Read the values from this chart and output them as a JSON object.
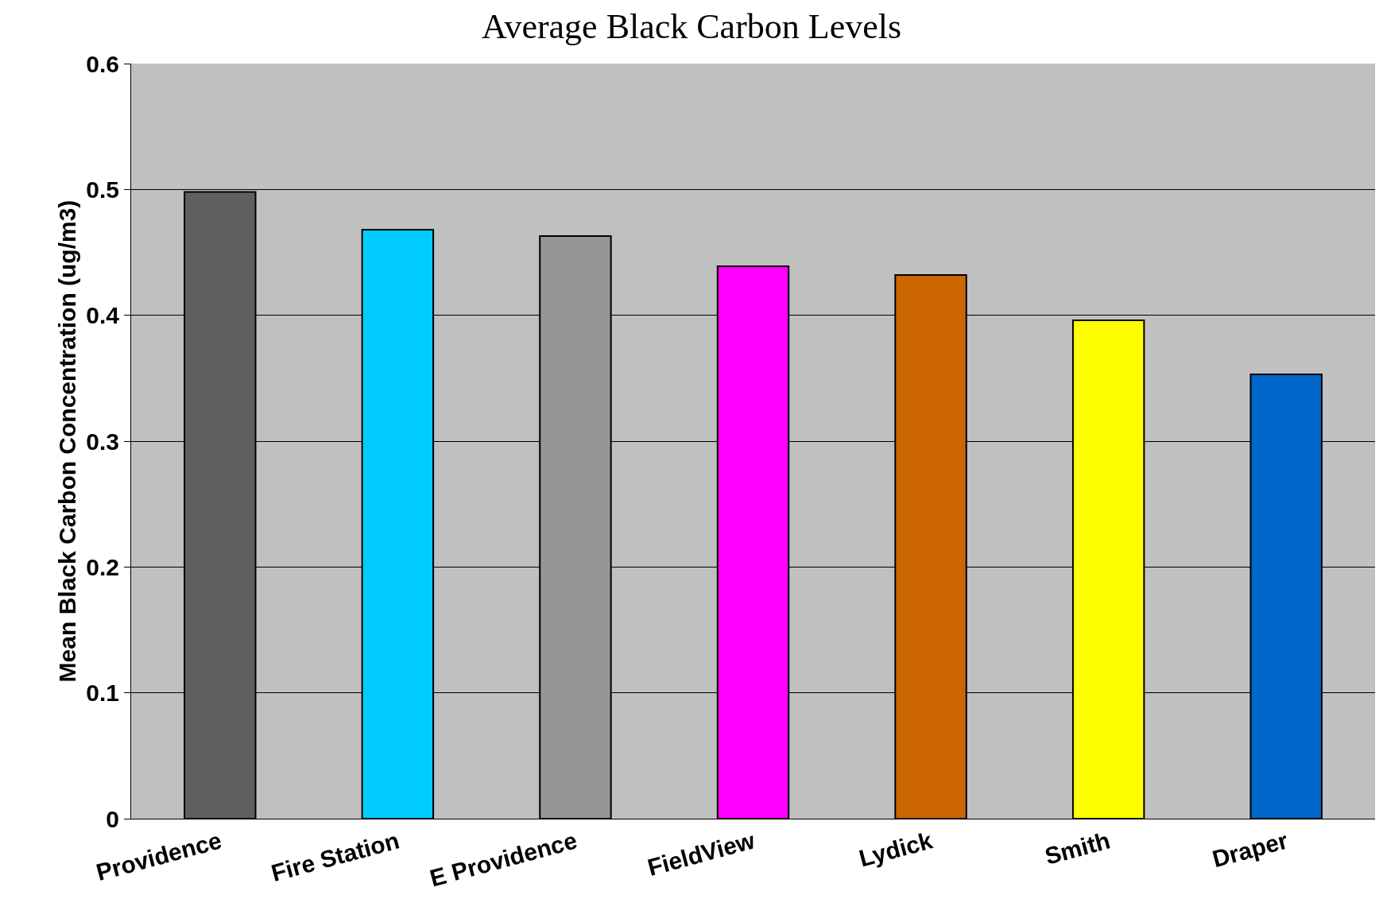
{
  "chart_data": {
    "type": "bar",
    "title": "Average Black Carbon Levels",
    "ylabel": "Mean Black Carbon Concentration (ug/m3)",
    "categories": [
      "Providence",
      "Fire Station",
      "E Providence",
      "FieldView",
      "Lydick",
      "Smith",
      "Draper"
    ],
    "values": [
      0.498,
      0.468,
      0.463,
      0.439,
      0.432,
      0.396,
      0.353
    ],
    "colors": [
      "#606060",
      "#00ccff",
      "#969696",
      "#ff00ff",
      "#cc6600",
      "#ffff00",
      "#0066cc"
    ],
    "ylim": [
      0,
      0.6
    ],
    "yticks": [
      0,
      0.1,
      0.2,
      0.3,
      0.4,
      0.5,
      0.6
    ],
    "grid": "y"
  }
}
